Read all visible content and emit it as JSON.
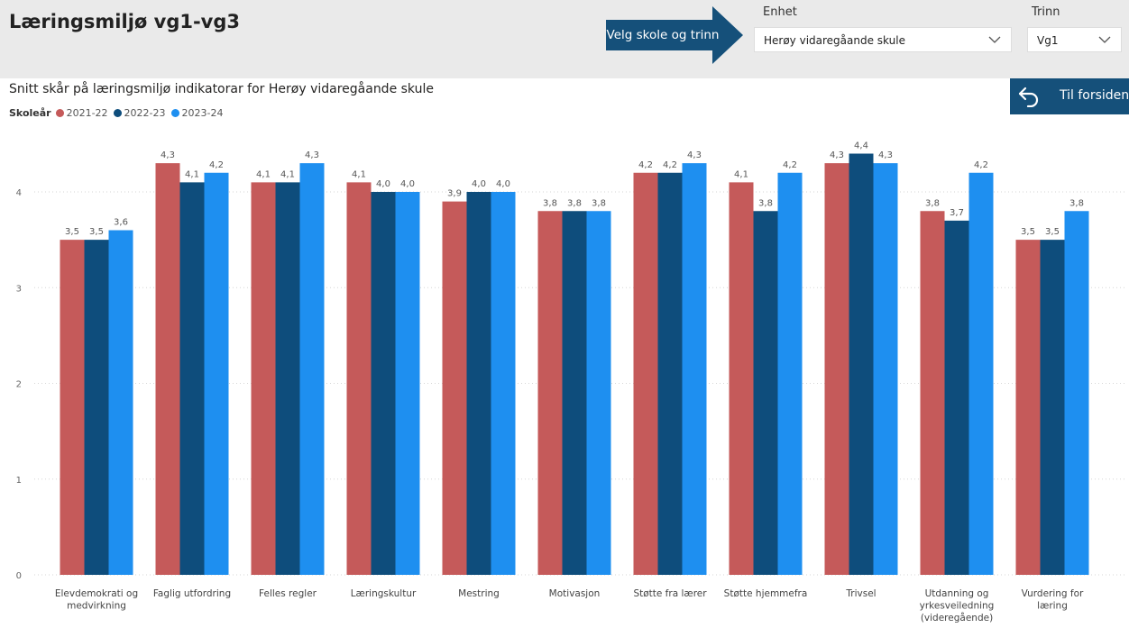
{
  "header": {
    "title": "Læringsmiljø vg1-vg3",
    "hint": "Velg skole og trinn",
    "hint_color": "#15507a"
  },
  "filters": {
    "enhet": {
      "label": "Enhet",
      "value": "Herøy vidaregåande skule"
    },
    "trinn": {
      "label": "Trinn",
      "value": "Vg1"
    }
  },
  "home_button": {
    "label": "Til forsiden",
    "icon": "undo-arrow-icon"
  },
  "legend": {
    "title": "Skoleår"
  },
  "chart_data": {
    "type": "bar",
    "title": "Snitt skår på læringsmiljø indikatorar for Herøy vidaregåande skule",
    "xlabel": "",
    "ylabel": "",
    "ylim": [
      0,
      4.5
    ],
    "yticks": [
      0,
      1,
      2,
      3,
      4
    ],
    "grid": true,
    "legend_position": "top-left",
    "categories": [
      [
        "Elevdemokrati og",
        "medvirkning"
      ],
      [
        "Faglig utfordring"
      ],
      [
        "Felles regler"
      ],
      [
        "Læringskultur"
      ],
      [
        "Mestring"
      ],
      [
        "Motivasjon"
      ],
      [
        "Støtte fra lærer"
      ],
      [
        "Støtte hjemmefra"
      ],
      [
        "Trivsel"
      ],
      [
        "Utdanning og",
        "yrkesveiledning",
        "(videregående)"
      ],
      [
        "Vurdering for",
        "læring"
      ]
    ],
    "series": [
      {
        "name": "2021-22",
        "color": "#c55a5a",
        "values": [
          3.5,
          4.3,
          4.1,
          4.1,
          3.9,
          3.8,
          4.2,
          4.1,
          4.3,
          3.8,
          3.5
        ],
        "labels": [
          "3,5",
          "4,3",
          "4,1",
          "4,1",
          "3,9",
          "3,8",
          "4,2",
          "4,1",
          "4,3",
          "3,8",
          "3,5"
        ]
      },
      {
        "name": "2022-23",
        "color": "#0e4d7c",
        "values": [
          3.5,
          4.1,
          4.1,
          4.0,
          4.0,
          3.8,
          4.2,
          3.8,
          4.4,
          3.7,
          3.5
        ],
        "labels": [
          "3,5",
          "4,1",
          "4,1",
          "4,0",
          "4,0",
          "3,8",
          "4,2",
          "3,8",
          "4,4",
          "3,7",
          "3,5"
        ]
      },
      {
        "name": "2023-24",
        "color": "#1e8ff0",
        "values": [
          3.6,
          4.2,
          4.3,
          4.0,
          4.0,
          3.8,
          4.3,
          4.2,
          4.3,
          4.2,
          3.8
        ],
        "labels": [
          "3,6",
          "4,2",
          "4,3",
          "4,0",
          "4,0",
          "3,8",
          "4,3",
          "4,2",
          "4,3",
          "4,2",
          "3,8"
        ]
      }
    ]
  }
}
